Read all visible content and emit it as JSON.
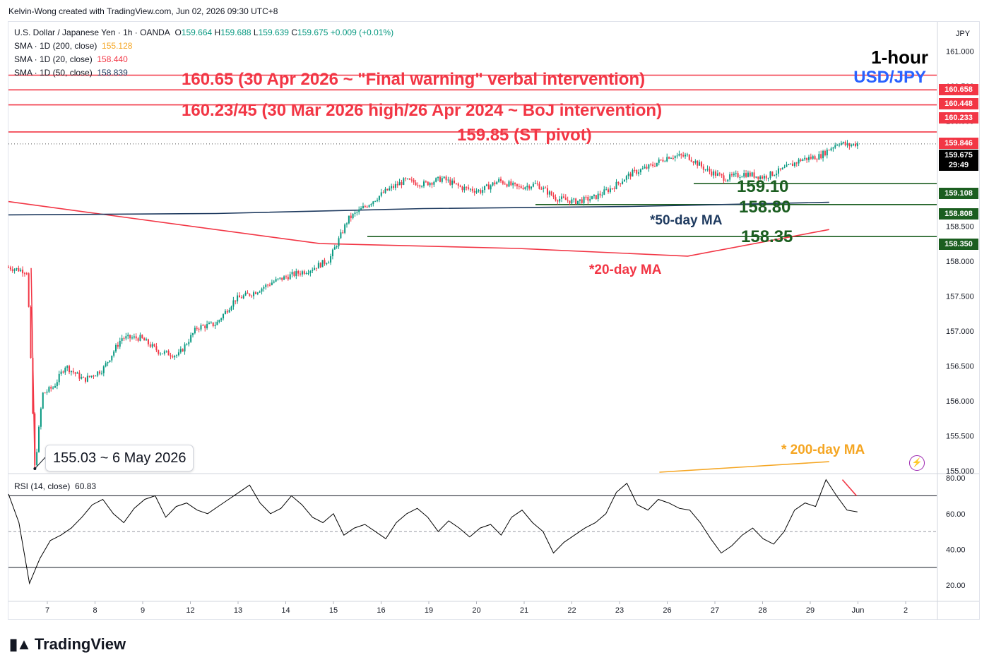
{
  "credit": "Kelvin-Wong created with TradingView.com, Jun 02, 2026 09:30 UTC+8",
  "legend": {
    "symbol": "U.S. Dollar / Japanese Yen · 1h · OANDA",
    "ohlc": [
      {
        "k": "O",
        "v": "159.664"
      },
      {
        "k": "H",
        "v": "159.688"
      },
      {
        "k": "L",
        "v": "159.639"
      },
      {
        "k": "C",
        "v": "159.675"
      }
    ],
    "change": "+0.009 (+0.01%)",
    "sma": [
      {
        "label": "SMA · 1D (200, close)",
        "value": "155.128",
        "color": "#f5a623"
      },
      {
        "label": "SMA · 1D (20, close)",
        "value": "158.440",
        "color": "#f23645"
      },
      {
        "label": "SMA · 1D (50, close)",
        "value": "158.839",
        "color": "#1e3a5f"
      }
    ]
  },
  "timeframe": "1-hour",
  "pair": "USD/JPY",
  "currency": "JPY",
  "notes": {
    "n1": "160.65 (30 Apr 2026 ~ \"Final warning\" verbal intervention)",
    "n2": "160.23/45 (30 Mar 2026 high/26 Apr 2024 ~ BoJ intervention)",
    "n3": "159.85 (ST pivot)",
    "s1": "159.10",
    "s2": "158.80",
    "s3": "158.35",
    "ma50": "*50-day MA",
    "ma20": "*20-day MA",
    "ma200": "* 200-day MA",
    "low": "155.03 ~ 6 May 2026"
  },
  "price_tags": {
    "t1": "160.658",
    "t2": "160.448",
    "t3": "160.233",
    "t4": "159.846",
    "now_price": "159.675",
    "now_time": "29:49",
    "t5": "159.108",
    "t6": "158.808",
    "t7": "158.350"
  },
  "rsi_label": "RSI (14, close)",
  "rsi_value": "60.83",
  "brand": "TradingView",
  "colors": {
    "up": "#089981",
    "down": "#f23645",
    "resistance": "#f23645",
    "support": "#1b5e20",
    "ma20": "#f23645",
    "ma50": "#1e3a5f",
    "ma200": "#f5a623",
    "rsi": "#000000"
  },
  "chart_data": [
    {
      "type": "candlestick",
      "title": "U.S. Dollar / Japanese Yen · 1h · OANDA",
      "x_ticks": [
        "7",
        "8",
        "9",
        "12",
        "13",
        "14",
        "15",
        "16",
        "19",
        "20",
        "21",
        "22",
        "23",
        "26",
        "27",
        "28",
        "29",
        "Jun",
        "2"
      ],
      "y_ticks": [
        155.0,
        155.5,
        156.0,
        156.5,
        157.0,
        157.5,
        158.0,
        158.5,
        159.0,
        159.5,
        160.0,
        160.5,
        161.0
      ],
      "ylim": [
        154.97,
        161.42
      ],
      "horizontal_levels": {
        "resistance": [
          160.658,
          160.448,
          160.233,
          159.846
        ],
        "support": [
          159.108,
          158.808,
          158.35
        ],
        "last_price": 159.675
      },
      "price_path": [
        {
          "x": 0.0,
          "y": 157.91
        },
        {
          "x": 1.0,
          "y": 157.85
        },
        {
          "x": 1.4,
          "y": 155.03
        },
        {
          "x": 1.8,
          "y": 156.1
        },
        {
          "x": 2.4,
          "y": 156.2
        },
        {
          "x": 3.0,
          "y": 156.5
        },
        {
          "x": 4.0,
          "y": 156.3
        },
        {
          "x": 5.0,
          "y": 156.45
        },
        {
          "x": 6.0,
          "y": 156.9
        },
        {
          "x": 7.0,
          "y": 156.9
        },
        {
          "x": 8.0,
          "y": 156.7
        },
        {
          "x": 9.0,
          "y": 156.65
        },
        {
          "x": 10.0,
          "y": 157.05
        },
        {
          "x": 11.0,
          "y": 157.1
        },
        {
          "x": 12.0,
          "y": 157.45
        },
        {
          "x": 13.0,
          "y": 157.55
        },
        {
          "x": 14.0,
          "y": 157.7
        },
        {
          "x": 15.0,
          "y": 157.8
        },
        {
          "x": 16.0,
          "y": 157.88
        },
        {
          "x": 17.0,
          "y": 158.02
        },
        {
          "x": 17.5,
          "y": 158.3
        },
        {
          "x": 18.0,
          "y": 158.6
        },
        {
          "x": 19.0,
          "y": 158.8
        },
        {
          "x": 20.0,
          "y": 159.0
        },
        {
          "x": 21.0,
          "y": 159.15
        },
        {
          "x": 22.0,
          "y": 159.1
        },
        {
          "x": 23.0,
          "y": 159.18
        },
        {
          "x": 24.0,
          "y": 159.05
        },
        {
          "x": 25.0,
          "y": 159.0
        },
        {
          "x": 26.0,
          "y": 159.15
        },
        {
          "x": 27.0,
          "y": 159.05
        },
        {
          "x": 28.0,
          "y": 159.1
        },
        {
          "x": 29.0,
          "y": 158.9
        },
        {
          "x": 30.0,
          "y": 158.85
        },
        {
          "x": 31.0,
          "y": 158.9
        },
        {
          "x": 32.0,
          "y": 159.05
        },
        {
          "x": 33.0,
          "y": 159.25
        },
        {
          "x": 34.0,
          "y": 159.35
        },
        {
          "x": 35.0,
          "y": 159.5
        },
        {
          "x": 36.0,
          "y": 159.5
        },
        {
          "x": 37.0,
          "y": 159.3
        },
        {
          "x": 38.0,
          "y": 159.18
        },
        {
          "x": 39.0,
          "y": 159.25
        },
        {
          "x": 40.0,
          "y": 159.2
        },
        {
          "x": 41.0,
          "y": 159.3
        },
        {
          "x": 42.0,
          "y": 159.45
        },
        {
          "x": 43.0,
          "y": 159.5
        },
        {
          "x": 44.0,
          "y": 159.7
        },
        {
          "x": 44.5,
          "y": 159.65
        },
        {
          "x": 45.0,
          "y": 159.68
        }
      ],
      "sma": [
        {
          "name": "SMA · 1D (20, close)",
          "points": [
            {
              "x": 0,
              "y": 158.85
            },
            {
              "x": 16.5,
              "y": 158.25
            },
            {
              "x": 27,
              "y": 158.18
            },
            {
              "x": 36,
              "y": 158.07
            },
            {
              "x": 43.5,
              "y": 158.45
            }
          ]
        },
        {
          "name": "SMA · 1D (50, close)",
          "points": [
            {
              "x": 0,
              "y": 158.66
            },
            {
              "x": 11,
              "y": 158.68
            },
            {
              "x": 22,
              "y": 158.75
            },
            {
              "x": 33,
              "y": 158.78
            },
            {
              "x": 43.5,
              "y": 158.84
            }
          ]
        },
        {
          "name": "SMA · 1D (200, close)",
          "points": [
            {
              "x": 34.5,
              "y": 154.98
            },
            {
              "x": 43.5,
              "y": 155.13
            }
          ]
        }
      ]
    },
    {
      "type": "line",
      "title": "RSI (14, close)",
      "y_ticks": [
        20,
        40,
        60,
        80
      ],
      "ylim": [
        11,
        82
      ],
      "levels": [
        70,
        50,
        30
      ],
      "series": [
        {
          "name": "RSI (14, close)",
          "values": [
            71,
            55,
            21,
            35,
            45,
            48,
            52,
            58,
            65,
            68,
            60,
            55,
            63,
            68,
            70,
            58,
            64,
            66,
            62,
            60,
            64,
            68,
            72,
            76,
            66,
            60,
            63,
            70,
            65,
            58,
            55,
            60,
            48,
            52,
            54,
            50,
            46,
            55,
            60,
            63,
            58,
            50,
            56,
            52,
            47,
            52,
            54,
            48,
            58,
            62,
            55,
            50,
            38,
            44,
            48,
            52,
            55,
            60,
            72,
            77,
            65,
            62,
            68,
            66,
            63,
            62,
            55,
            46,
            38,
            42,
            48,
            52,
            46,
            43,
            50,
            62,
            66,
            64,
            79,
            70,
            62,
            61
          ]
        },
        {
          "name": "divergence",
          "values": [
            79,
            70
          ]
        }
      ]
    }
  ]
}
